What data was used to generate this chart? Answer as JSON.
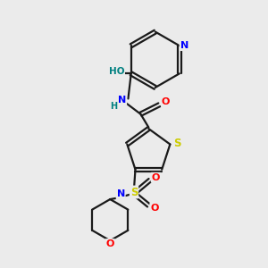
{
  "bg_color": "#ebebeb",
  "bond_color": "#1a1a1a",
  "atom_colors": {
    "N": "#0000ff",
    "O": "#ff0000",
    "S": "#cccc00",
    "H": "#008080",
    "C": "#1a1a1a"
  },
  "lw": 1.6,
  "dbo": 0.07
}
